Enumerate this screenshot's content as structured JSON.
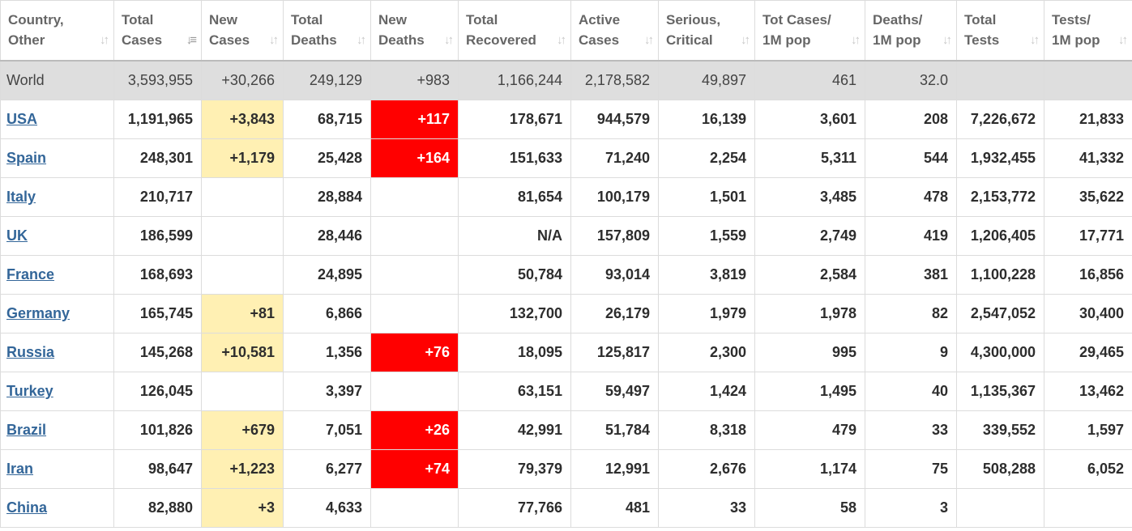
{
  "columns": [
    {
      "l1": "Country,",
      "l2": "Other"
    },
    {
      "l1": "Total",
      "l2": "Cases"
    },
    {
      "l1": "New",
      "l2": "Cases"
    },
    {
      "l1": "Total",
      "l2": "Deaths"
    },
    {
      "l1": "New",
      "l2": "Deaths"
    },
    {
      "l1": "Total",
      "l2": "Recovered"
    },
    {
      "l1": "Active",
      "l2": "Cases"
    },
    {
      "l1": "Serious,",
      "l2": "Critical"
    },
    {
      "l1": "Tot Cases/",
      "l2": "1M pop"
    },
    {
      "l1": "Deaths/",
      "l2": "1M pop"
    },
    {
      "l1": "Total",
      "l2": "Tests"
    },
    {
      "l1": "Tests/",
      "l2": "1M pop"
    }
  ],
  "sort_icons": {
    "default": "↓↑",
    "active": "↓≡"
  },
  "world": [
    "World",
    "3,593,955",
    "+30,266",
    "249,129",
    "+983",
    "1,166,244",
    "2,178,582",
    "49,897",
    "461",
    "32.0",
    "",
    ""
  ],
  "rows": [
    [
      "USA",
      "1,191,965",
      "+3,843",
      "68,715",
      "+117",
      "178,671",
      "944,579",
      "16,139",
      "3,601",
      "208",
      "7,226,672",
      "21,833"
    ],
    [
      "Spain",
      "248,301",
      "+1,179",
      "25,428",
      "+164",
      "151,633",
      "71,240",
      "2,254",
      "5,311",
      "544",
      "1,932,455",
      "41,332"
    ],
    [
      "Italy",
      "210,717",
      "",
      "28,884",
      "",
      "81,654",
      "100,179",
      "1,501",
      "3,485",
      "478",
      "2,153,772",
      "35,622"
    ],
    [
      "UK",
      "186,599",
      "",
      "28,446",
      "",
      "N/A",
      "157,809",
      "1,559",
      "2,749",
      "419",
      "1,206,405",
      "17,771"
    ],
    [
      "France",
      "168,693",
      "",
      "24,895",
      "",
      "50,784",
      "93,014",
      "3,819",
      "2,584",
      "381",
      "1,100,228",
      "16,856"
    ],
    [
      "Germany",
      "165,745",
      "+81",
      "6,866",
      "",
      "132,700",
      "26,179",
      "1,979",
      "1,978",
      "82",
      "2,547,052",
      "30,400"
    ],
    [
      "Russia",
      "145,268",
      "+10,581",
      "1,356",
      "+76",
      "18,095",
      "125,817",
      "2,300",
      "995",
      "9",
      "4,300,000",
      "29,465"
    ],
    [
      "Turkey",
      "126,045",
      "",
      "3,397",
      "",
      "63,151",
      "59,497",
      "1,424",
      "1,495",
      "40",
      "1,135,367",
      "13,462"
    ],
    [
      "Brazil",
      "101,826",
      "+679",
      "7,051",
      "+26",
      "42,991",
      "51,784",
      "8,318",
      "479",
      "33",
      "339,552",
      "1,597"
    ],
    [
      "Iran",
      "98,647",
      "+1,223",
      "6,277",
      "+74",
      "79,379",
      "12,991",
      "2,676",
      "1,174",
      "75",
      "508,288",
      "6,052"
    ],
    [
      "China",
      "82,880",
      "+3",
      "4,633",
      "",
      "77,766",
      "481",
      "33",
      "58",
      "3",
      "",
      ""
    ]
  ]
}
